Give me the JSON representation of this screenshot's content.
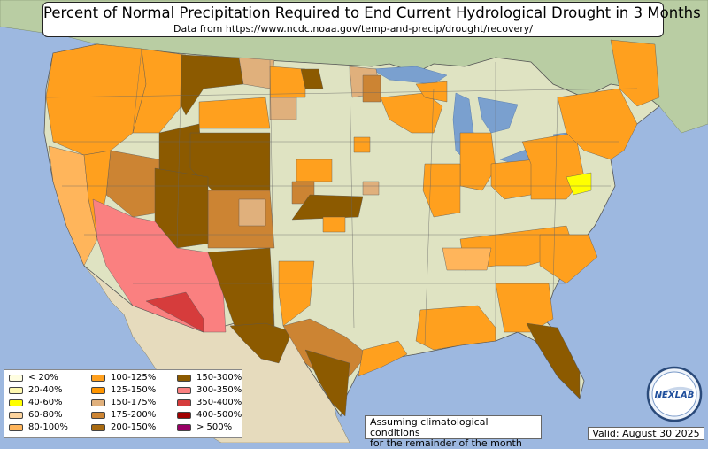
{
  "title": "Percent of Normal Precipitation Required to End Current Hydrological Drought in 3 Months",
  "subtitle": "Data from https://www.ncdc.noaa.gov/temp-and-precip/drought/recovery/",
  "legend": [
    {
      "label": "< 20%",
      "color": "#fefde0"
    },
    {
      "label": "20-40%",
      "color": "#fff9b0"
    },
    {
      "label": "40-60%",
      "color": "#ffff00"
    },
    {
      "label": "60-80%",
      "color": "#fdd49e"
    },
    {
      "label": "80-100%",
      "color": "#ffb55b"
    },
    {
      "label": "100-125%",
      "color": "#ffa01e"
    },
    {
      "label": "125-150%",
      "color": "#ff9500"
    },
    {
      "label": "150-175%",
      "color": "#e0b07c"
    },
    {
      "label": "175-200%",
      "color": "#cc8433"
    },
    {
      "label": "200-150%",
      "color": "#a86a10"
    },
    {
      "label": "150-300%",
      "color": "#8c5a00"
    },
    {
      "label": "300-350%",
      "color": "#fa8080"
    },
    {
      "label": "350-400%",
      "color": "#d63c3c"
    },
    {
      "label": "400-500%",
      "color": "#a00000"
    },
    {
      "label": "> 500%",
      "color": "#990066"
    }
  ],
  "note_line1": "Assuming climatological conditions",
  "note_line2": "for the remainder of the month",
  "valid": "Valid: August 30 2025",
  "logo_text": "NEXLAB",
  "colors": {
    "ocean": "#9db8e0",
    "land": "#dfe4c4",
    "mexico": "#e8ddc0",
    "canada": "#b8cca0",
    "lakes": "#7aa0cf"
  }
}
